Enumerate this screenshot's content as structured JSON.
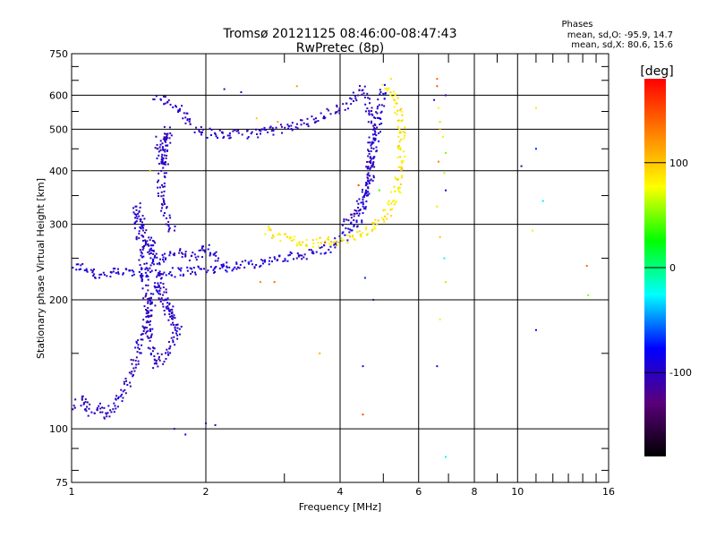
{
  "chart_data": {
    "type": "scatter",
    "title": "Tromsø 20121125 08:46:00-08:47:43",
    "subtitle": "RwPretec (8p)",
    "xlabel": "Frequency [MHz]",
    "ylabel": "Stationary phase Virtual Height [km]",
    "x_scale": "log",
    "y_scale": "log",
    "xlim": [
      1,
      16
    ],
    "ylim": [
      75,
      750
    ],
    "x_ticks": [
      1,
      2,
      4,
      6,
      8,
      10,
      16
    ],
    "x_tick_labels": [
      "1",
      "2",
      "4",
      "6",
      "8",
      "10",
      "16"
    ],
    "x_minor_ticks": [
      3,
      5,
      7,
      9,
      11,
      12,
      13,
      14,
      15
    ],
    "y_ticks": [
      75,
      100,
      200,
      300,
      400,
      500,
      600,
      750
    ],
    "y_tick_labels": [
      "75",
      "100",
      "200",
      "300",
      "400",
      "500",
      "600",
      "750"
    ],
    "y_minor_ticks": [
      80,
      90,
      150,
      250,
      350,
      450,
      550,
      650,
      700
    ],
    "grid": true,
    "stats": {
      "heading": "Phases",
      "o_line": "mean, sd,O: -95.9, 14.7",
      "x_line": "mean, sd,X: 80.6, 15.6"
    },
    "colorbar": {
      "label": "[deg]",
      "range": [
        -180,
        180
      ],
      "ticks": [
        100,
        0,
        -100
      ],
      "tick_labels": [
        "100",
        "0",
        "-100"
      ],
      "colors": [
        "#000000",
        "#5a007a",
        "#0000ff",
        "#00ffff",
        "#00ff00",
        "#ffff00",
        "#ff8000",
        "#ff0000"
      ]
    },
    "traces": [
      {
        "name_hint": "F1-O",
        "phase": -95,
        "points": [
          [
            1.0,
            240
          ],
          [
            1.05,
            238
          ],
          [
            1.1,
            234
          ],
          [
            1.15,
            228
          ],
          [
            1.2,
            230
          ],
          [
            1.3,
            232
          ],
          [
            1.45,
            232
          ],
          [
            1.6,
            230
          ],
          [
            1.75,
            233
          ],
          [
            2.0,
            235
          ],
          [
            2.3,
            239
          ],
          [
            2.6,
            244
          ],
          [
            2.9,
            248
          ],
          [
            3.2,
            253
          ],
          [
            3.5,
            258
          ],
          [
            3.8,
            265
          ],
          [
            4.0,
            276
          ],
          [
            4.2,
            290
          ],
          [
            4.4,
            310
          ],
          [
            4.55,
            340
          ],
          [
            4.7,
            400
          ],
          [
            4.8,
            460
          ],
          [
            4.88,
            520
          ],
          [
            4.95,
            580
          ],
          [
            5.0,
            625
          ]
        ]
      },
      {
        "name_hint": "F1-cusp",
        "phase": -95,
        "points": [
          [
            1.5,
            280
          ],
          [
            1.52,
            260
          ],
          [
            1.55,
            250
          ],
          [
            1.6,
            245
          ],
          [
            1.7,
            260
          ],
          [
            1.8,
            255
          ],
          [
            1.9,
            250
          ],
          [
            2.0,
            265
          ],
          [
            2.1,
            250
          ],
          [
            2.2,
            240
          ]
        ]
      },
      {
        "name_hint": "F2-O",
        "phase": -100,
        "points": [
          [
            1.55,
            600
          ],
          [
            1.6,
            590
          ],
          [
            1.7,
            570
          ],
          [
            1.9,
            505
          ],
          [
            2.0,
            490
          ],
          [
            2.2,
            485
          ],
          [
            2.5,
            488
          ],
          [
            2.8,
            495
          ],
          [
            3.1,
            505
          ],
          [
            3.4,
            520
          ],
          [
            3.7,
            540
          ],
          [
            4.0,
            560
          ],
          [
            4.2,
            580
          ],
          [
            4.4,
            605
          ],
          [
            4.55,
            630
          ]
        ]
      },
      {
        "name_hint": "F2-O-vertical",
        "phase": -100,
        "points": [
          [
            4.6,
            600
          ],
          [
            4.65,
            560
          ],
          [
            4.7,
            520
          ],
          [
            4.72,
            480
          ],
          [
            4.7,
            440
          ],
          [
            4.65,
            400
          ],
          [
            4.55,
            360
          ],
          [
            4.4,
            330
          ],
          [
            4.2,
            310
          ],
          [
            4.05,
            300
          ]
        ]
      },
      {
        "name_hint": "X-mode",
        "phase": 85,
        "points": [
          [
            2.75,
            290
          ],
          [
            2.9,
            283
          ],
          [
            3.1,
            276
          ],
          [
            3.3,
            272
          ],
          [
            3.6,
            272
          ],
          [
            3.9,
            274
          ],
          [
            4.2,
            278
          ],
          [
            4.5,
            285
          ],
          [
            4.8,
            297
          ],
          [
            5.0,
            310
          ],
          [
            5.2,
            330
          ],
          [
            5.35,
            360
          ],
          [
            5.45,
            400
          ],
          [
            5.5,
            440
          ],
          [
            5.5,
            490
          ],
          [
            5.45,
            530
          ],
          [
            5.35,
            570
          ],
          [
            5.2,
            600
          ],
          [
            5.0,
            630
          ]
        ]
      },
      {
        "name_hint": "low-E",
        "phase": -100,
        "points": [
          [
            1.0,
            110
          ],
          [
            1.05,
            118
          ],
          [
            1.1,
            108
          ],
          [
            1.15,
            112
          ],
          [
            1.2,
            106
          ],
          [
            1.25,
            115
          ],
          [
            1.3,
            120
          ],
          [
            1.35,
            130
          ],
          [
            1.4,
            150
          ],
          [
            1.45,
            170
          ],
          [
            1.5,
            190
          ],
          [
            1.55,
            215
          ],
          [
            1.6,
            200
          ],
          [
            1.65,
            185
          ],
          [
            1.7,
            175
          ],
          [
            1.4,
            330
          ],
          [
            1.42,
            280
          ],
          [
            1.45,
            240
          ],
          [
            1.5,
            160
          ],
          [
            1.55,
            140
          ],
          [
            1.65,
            150
          ],
          [
            1.75,
            180
          ]
        ]
      },
      {
        "name_hint": "F2-cusp-low",
        "phase": -100,
        "points": [
          [
            1.55,
            470
          ],
          [
            1.58,
            440
          ],
          [
            1.6,
            420
          ],
          [
            1.62,
            480
          ],
          [
            1.65,
            500
          ],
          [
            1.58,
            360
          ],
          [
            1.6,
            340
          ],
          [
            1.62,
            320
          ],
          [
            1.65,
            300
          ],
          [
            1.7,
            290
          ]
        ]
      }
    ],
    "scatter_points": [
      [
        6.6,
        655,
        140
      ],
      [
        6.6,
        630,
        150
      ],
      [
        5.2,
        655,
        90
      ],
      [
        6.5,
        585,
        -110
      ],
      [
        6.65,
        560,
        80
      ],
      [
        6.7,
        520,
        60
      ],
      [
        6.8,
        480,
        70
      ],
      [
        6.9,
        440,
        50
      ],
      [
        6.65,
        420,
        130
      ],
      [
        6.85,
        395,
        60
      ],
      [
        6.9,
        360,
        -90
      ],
      [
        6.6,
        330,
        90
      ],
      [
        6.7,
        280,
        100
      ],
      [
        6.85,
        250,
        -20
      ],
      [
        6.9,
        220,
        60
      ],
      [
        6.7,
        180,
        70
      ],
      [
        6.6,
        140,
        -110
      ],
      [
        6.9,
        86,
        -20
      ],
      [
        10.2,
        410,
        -110
      ],
      [
        11.0,
        450,
        -70
      ],
      [
        11.4,
        340,
        -30
      ],
      [
        10.8,
        290,
        70
      ],
      [
        11.0,
        170,
        -80
      ],
      [
        14.3,
        240,
        140
      ],
      [
        14.4,
        205,
        50
      ],
      [
        11.0,
        560,
        90
      ],
      [
        3.6,
        150,
        110
      ],
      [
        4.5,
        140,
        -100
      ],
      [
        4.5,
        108,
        150
      ],
      [
        3.2,
        630,
        120
      ],
      [
        2.9,
        520,
        120
      ],
      [
        2.6,
        530,
        100
      ],
      [
        2.4,
        610,
        -100
      ],
      [
        2.2,
        620,
        -110
      ],
      [
        2.0,
        103,
        -110
      ],
      [
        2.1,
        102,
        -110
      ],
      [
        1.7,
        100,
        -110
      ],
      [
        1.8,
        97,
        -80
      ],
      [
        1.5,
        400,
        110
      ],
      [
        2.65,
        220,
        130
      ],
      [
        2.85,
        220,
        140
      ],
      [
        3.7,
        272,
        150
      ],
      [
        4.55,
        225,
        -70
      ],
      [
        4.75,
        200,
        -120
      ],
      [
        4.4,
        370,
        150
      ],
      [
        6.7,
        500,
        110
      ],
      [
        6.9,
        600,
        -100
      ],
      [
        3.2,
        250,
        -90
      ],
      [
        2.5,
        245,
        -60
      ],
      [
        4.9,
        360,
        40
      ]
    ]
  }
}
